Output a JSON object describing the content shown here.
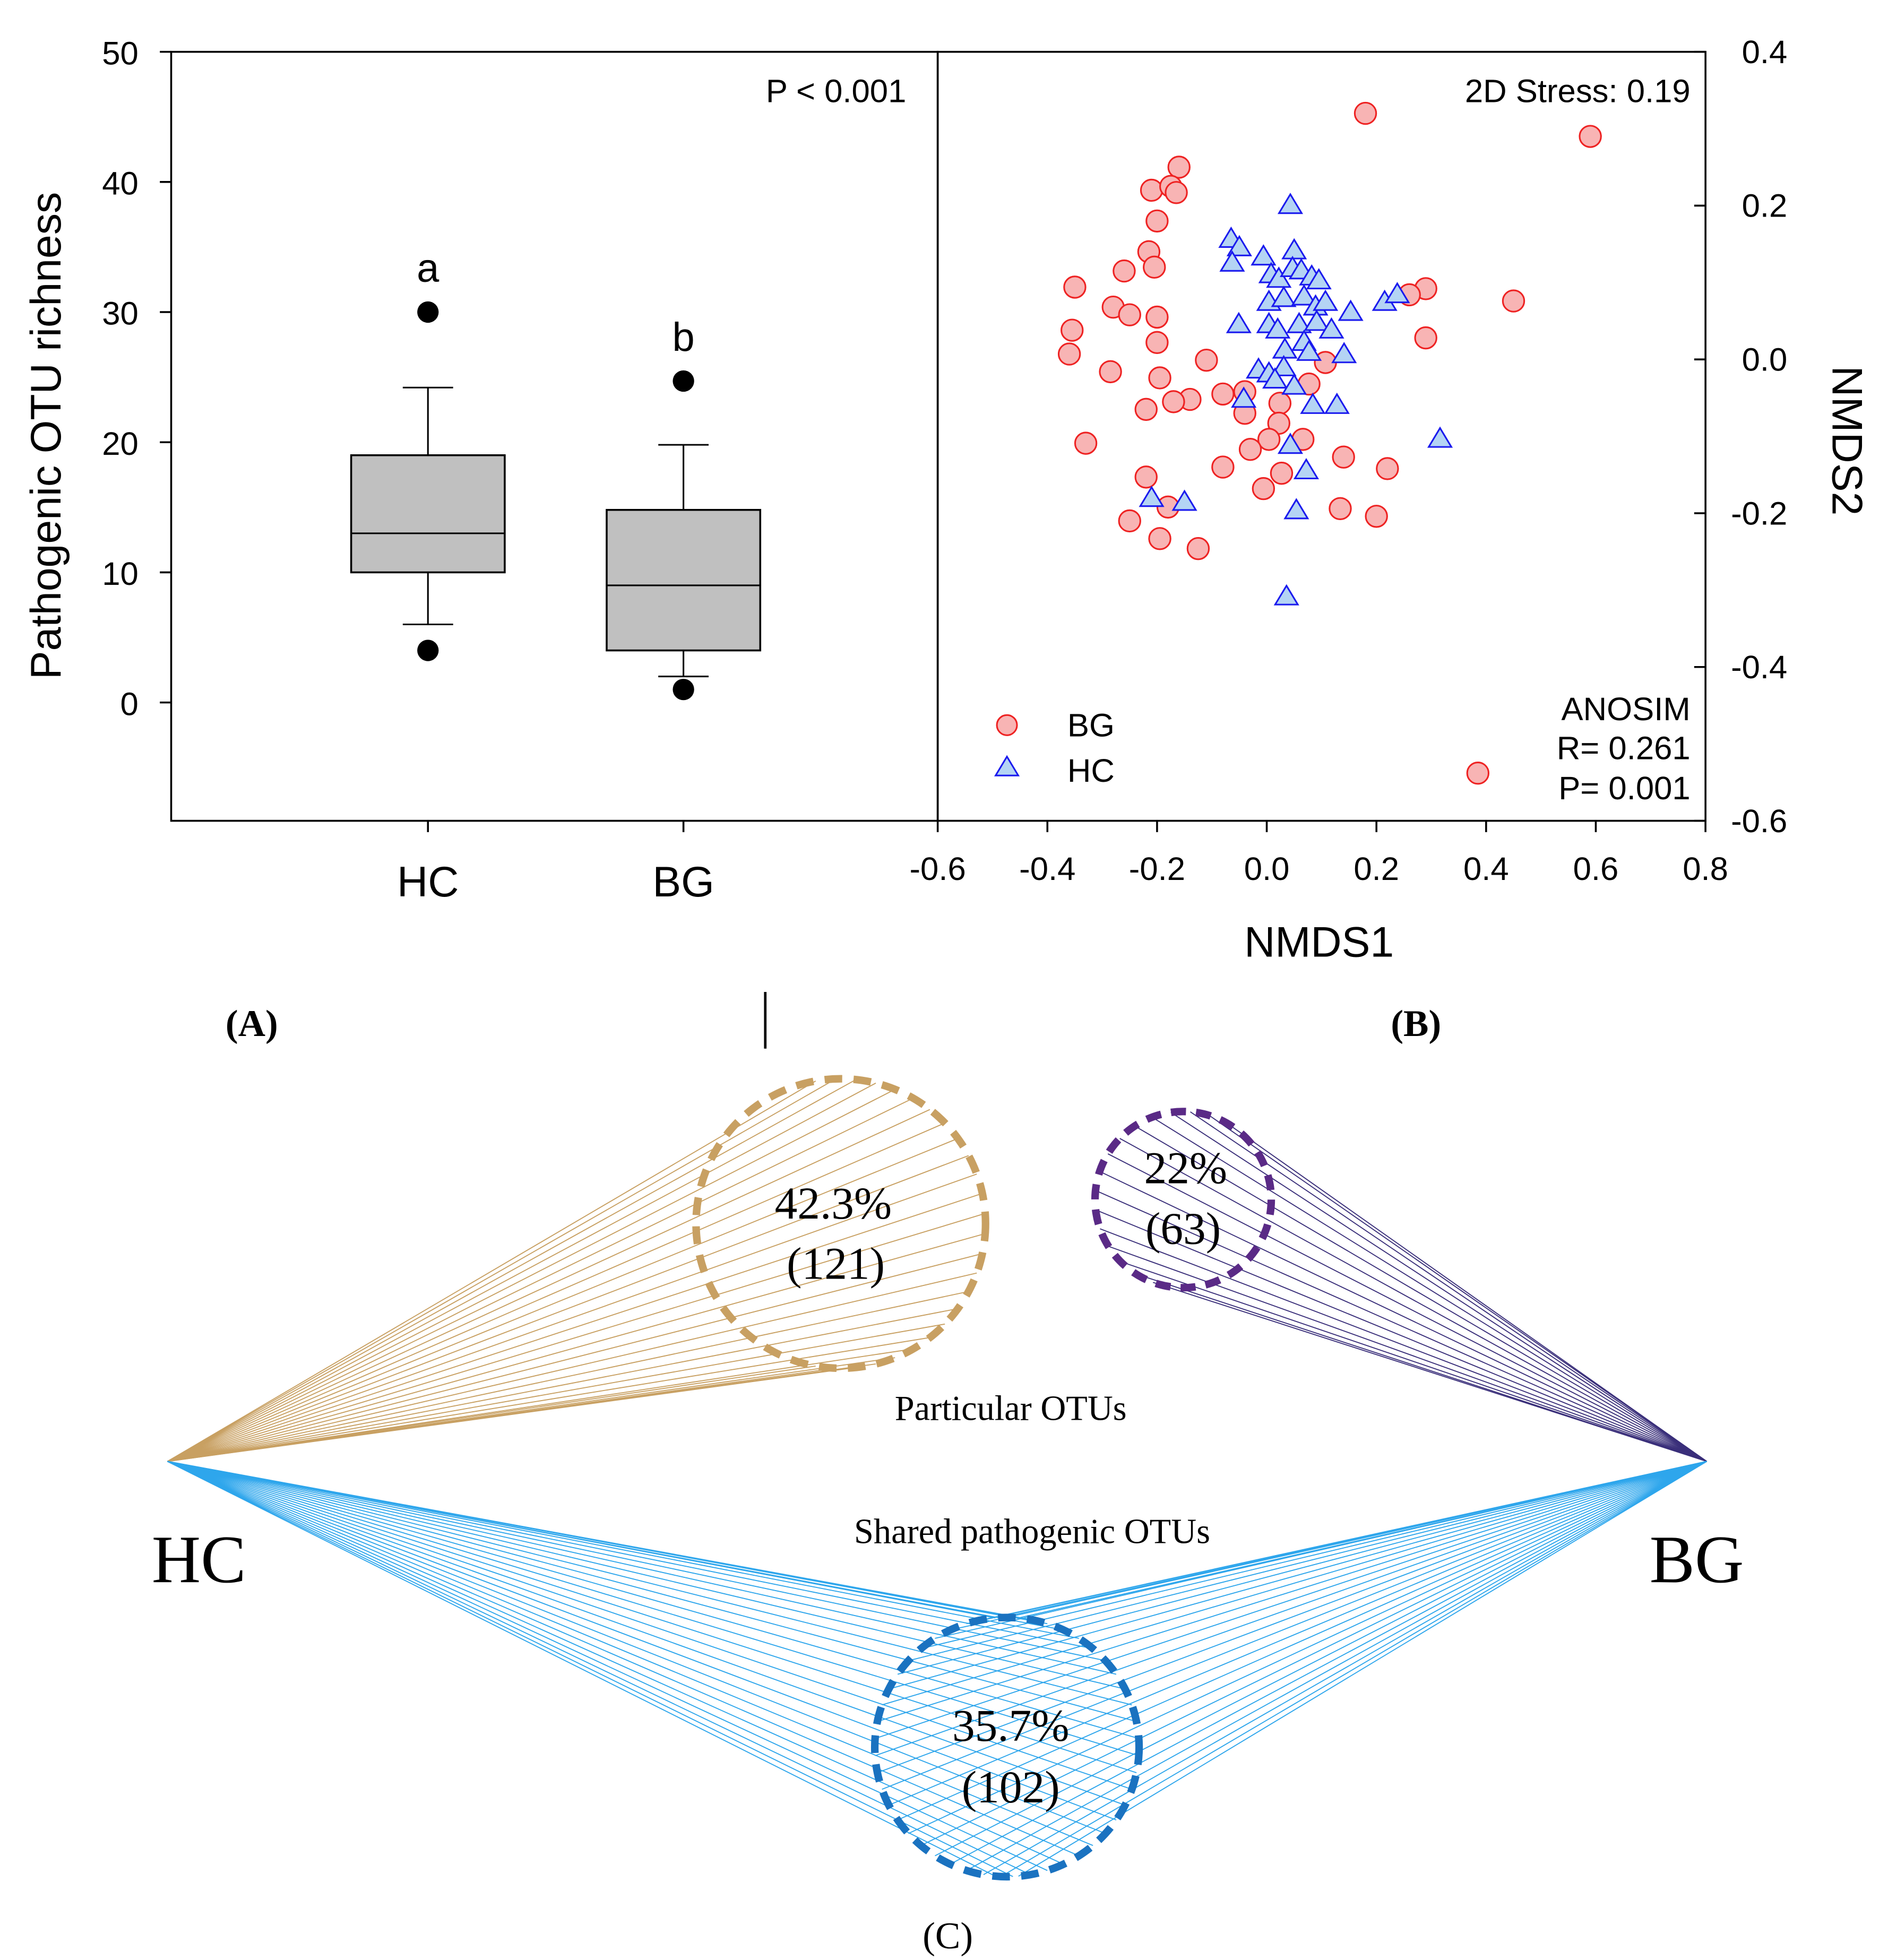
{
  "chart_data": [
    {
      "type": "box",
      "panel_label": "(A)",
      "ylabel": "Pathogenic OTU richness",
      "ylim": [
        -9.1,
        50
      ],
      "yticks": [
        0,
        10,
        20,
        30,
        40,
        50
      ],
      "categories": [
        "HC",
        "BG"
      ],
      "annotation": "P < 0.001",
      "boxes": [
        {
          "name": "HC",
          "whisker_low": 6,
          "q1": 10,
          "median": 13,
          "q3": 19,
          "whisker_high": 24.2,
          "outliers": [
            30,
            4
          ],
          "letter": "a"
        },
        {
          "name": "BG",
          "whisker_low": 2,
          "q1": 4,
          "median": 9,
          "q3": 14.8,
          "whisker_high": 19.8,
          "outliers": [
            24.7,
            1
          ],
          "letter": "b"
        }
      ],
      "colors": {
        "box": "#c0c0c0",
        "outlier": "#000000"
      }
    },
    {
      "type": "scatter",
      "panel_label": "(B)",
      "xlabel": "NMDS1",
      "ylabel": "NMDS2",
      "xlim": [
        -0.6,
        0.8
      ],
      "ylim": [
        -0.6,
        0.4
      ],
      "xticks": [
        "-0.6",
        "-0.4",
        "-0.2",
        "0.0",
        "0.2",
        "0.4",
        "0.6",
        "0.8"
      ],
      "yticks": [
        "0.4",
        "0.2",
        "0.0",
        "-0.2",
        "-0.4",
        "-0.6"
      ],
      "stress": "2D Stress: 0.19",
      "anosim": [
        "ANOSIM",
        "R= 0.261",
        "P= 0.001"
      ],
      "legend": {
        "position": "bottom-left",
        "entries": [
          "BG",
          "HC"
        ]
      },
      "series": [
        {
          "name": "BG",
          "marker": "circle",
          "fill": "#f8b4b4",
          "stroke": "#ee2222",
          "points": [
            [
              0.18,
              0.32
            ],
            [
              0.59,
              0.29
            ],
            [
              -0.16,
              0.25
            ],
            [
              -0.21,
              0.22
            ],
            [
              -0.175,
              0.225
            ],
            [
              -0.165,
              0.217
            ],
            [
              -0.2,
              0.18
            ],
            [
              -0.215,
              0.14
            ],
            [
              -0.205,
              0.12
            ],
            [
              -0.26,
              0.115
            ],
            [
              -0.35,
              0.094
            ],
            [
              -0.28,
              0.068
            ],
            [
              -0.25,
              0.058
            ],
            [
              -0.2,
              0.055
            ],
            [
              -0.355,
              0.038
            ],
            [
              -0.2,
              0.022
            ],
            [
              -0.36,
              0.007
            ],
            [
              -0.11,
              -0.001
            ],
            [
              -0.285,
              -0.016
            ],
            [
              -0.195,
              -0.024
            ],
            [
              0.45,
              0.076
            ],
            [
              0.29,
              0.092
            ],
            [
              0.26,
              0.084
            ],
            [
              0.29,
              0.028
            ],
            [
              0.107,
              -0.004
            ],
            [
              0.077,
              -0.032
            ],
            [
              -0.08,
              -0.045
            ],
            [
              -0.04,
              -0.042
            ],
            [
              -0.14,
              -0.052
            ],
            [
              -0.17,
              -0.055
            ],
            [
              -0.22,
              -0.065
            ],
            [
              -0.04,
              -0.07
            ],
            [
              0.024,
              -0.057
            ],
            [
              0.022,
              -0.083
            ],
            [
              0.004,
              -0.104
            ],
            [
              0.066,
              -0.104
            ],
            [
              -0.33,
              -0.109
            ],
            [
              -0.03,
              -0.117
            ],
            [
              -0.08,
              -0.14
            ],
            [
              0.027,
              -0.148
            ],
            [
              0.14,
              -0.127
            ],
            [
              0.22,
              -0.142
            ],
            [
              -0.22,
              -0.153
            ],
            [
              -0.006,
              -0.168
            ],
            [
              -0.18,
              -0.192
            ],
            [
              -0.25,
              -0.21
            ],
            [
              0.134,
              -0.194
            ],
            [
              0.2,
              -0.204
            ],
            [
              -0.195,
              -0.233
            ],
            [
              -0.125,
              -0.246
            ],
            [
              0.385,
              -0.538
            ]
          ]
        },
        {
          "name": "HC",
          "marker": "triangle",
          "fill": "#b4d4f4",
          "stroke": "#1a1aee",
          "points": [
            [
              0.043,
              0.2
            ],
            [
              -0.065,
              0.156
            ],
            [
              -0.05,
              0.145
            ],
            [
              -0.063,
              0.125
            ],
            [
              -0.006,
              0.133
            ],
            [
              0.05,
              0.141
            ],
            [
              0.008,
              0.11
            ],
            [
              0.022,
              0.104
            ],
            [
              0.047,
              0.118
            ],
            [
              0.063,
              0.115
            ],
            [
              0.082,
              0.107
            ],
            [
              0.095,
              0.102
            ],
            [
              0.004,
              0.074
            ],
            [
              0.031,
              0.079
            ],
            [
              0.068,
              0.081
            ],
            [
              0.089,
              0.068
            ],
            [
              0.107,
              0.074
            ],
            [
              0.153,
              0.061
            ],
            [
              0.215,
              0.074
            ],
            [
              0.238,
              0.084
            ],
            [
              -0.051,
              0.045
            ],
            [
              0.004,
              0.045
            ],
            [
              0.02,
              0.038
            ],
            [
              0.059,
              0.045
            ],
            [
              0.091,
              0.048
            ],
            [
              0.118,
              0.038
            ],
            [
              0.033,
              0.012
            ],
            [
              0.068,
              0.022
            ],
            [
              0.077,
              0.009
            ],
            [
              0.141,
              0.006
            ],
            [
              -0.015,
              -0.014
            ],
            [
              0.004,
              -0.019
            ],
            [
              0.031,
              -0.011
            ],
            [
              0.015,
              -0.027
            ],
            [
              0.05,
              -0.035
            ],
            [
              -0.042,
              -0.052
            ],
            [
              0.084,
              -0.06
            ],
            [
              0.128,
              -0.06
            ],
            [
              0.316,
              -0.104
            ],
            [
              0.043,
              -0.112
            ],
            [
              0.072,
              -0.145
            ],
            [
              -0.21,
              -0.181
            ],
            [
              -0.15,
              -0.186
            ],
            [
              0.054,
              -0.197
            ],
            [
              0.036,
              -0.309
            ]
          ]
        }
      ]
    },
    {
      "type": "diagram",
      "panel_label": "(C)",
      "groups": [
        "HC",
        "BG"
      ],
      "particular_label": "Particular OTUs",
      "shared_label": "Shared pathogenic OTUs",
      "sets": [
        {
          "name": "HC particular",
          "percent": "42.3%",
          "count": "(121)",
          "color": "#c8a062",
          "line_color": "#c8a062"
        },
        {
          "name": "BG particular",
          "percent": "22%",
          "count": "(63)",
          "color": "#5a2a86",
          "line_color": "#3a2f7a"
        },
        {
          "name": "Shared",
          "percent": "35.7%",
          "count": "(102)",
          "color": "#1a72c0",
          "line_color": "#2ea6ec"
        }
      ]
    }
  ]
}
